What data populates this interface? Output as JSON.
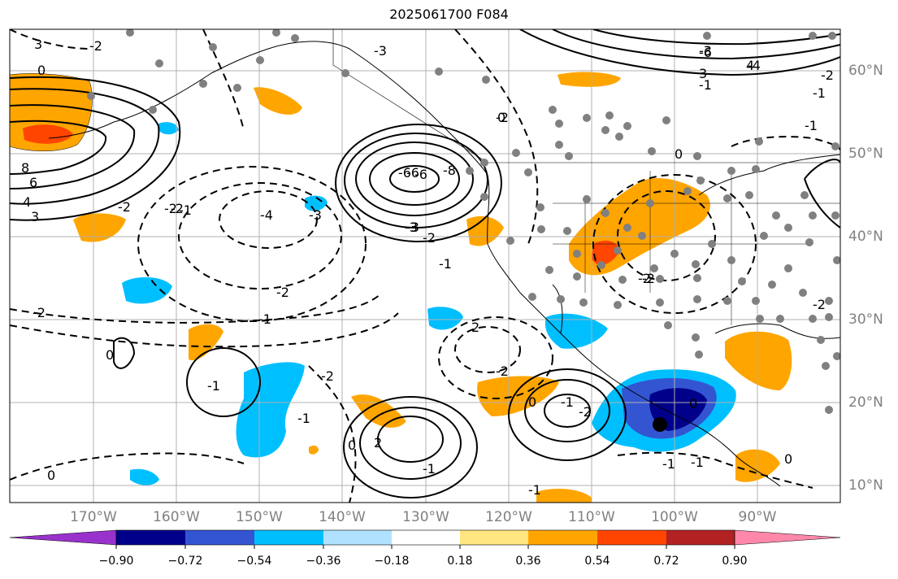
{
  "title": "2025061700 F084",
  "lat_labels": [
    "60°N",
    "50°N",
    "40°N",
    "30°N",
    "20°N",
    "10°N"
  ],
  "lon_labels": [
    "170°W",
    "160°W",
    "150°W",
    "140°W",
    "130°W",
    "120°W",
    "110°W",
    "100°W",
    "90°W"
  ],
  "colorbar": {
    "ticks": [
      "−0.90",
      "−0.72",
      "−0.54",
      "−0.36",
      "−0.18",
      "0.18",
      "0.36",
      "0.54",
      "0.72",
      "0.90"
    ],
    "colors": [
      "#9932cc",
      "#00008b",
      "#3455d2",
      "#00bfff",
      "#b0e2ff",
      "#ffffff",
      "#ffe680",
      "#ffa500",
      "#ff4500",
      "#b22222",
      "#ff88aa"
    ]
  },
  "contour_labels": [
    "3",
    "0",
    "-2",
    "8",
    "6",
    "4",
    "3",
    "-2",
    "-3",
    "-6",
    "-8",
    "-6",
    "-2",
    "0",
    "-2",
    "-3",
    "-4",
    "-6",
    "-3",
    "-2",
    "0",
    "-2",
    "-3",
    "-4",
    "-6",
    "-1",
    "-2",
    "4",
    "3",
    "-3",
    "-2",
    "-2",
    "-1",
    "-1",
    "-1",
    "-2",
    "2",
    "-2",
    "-2",
    "-1",
    "-1",
    "-2",
    "0",
    "2",
    "-1",
    "0",
    "-1",
    "-2",
    "-1",
    "0",
    "-1",
    "0",
    "-1",
    "-1",
    "-2",
    "0",
    "-1",
    "0"
  ]
}
